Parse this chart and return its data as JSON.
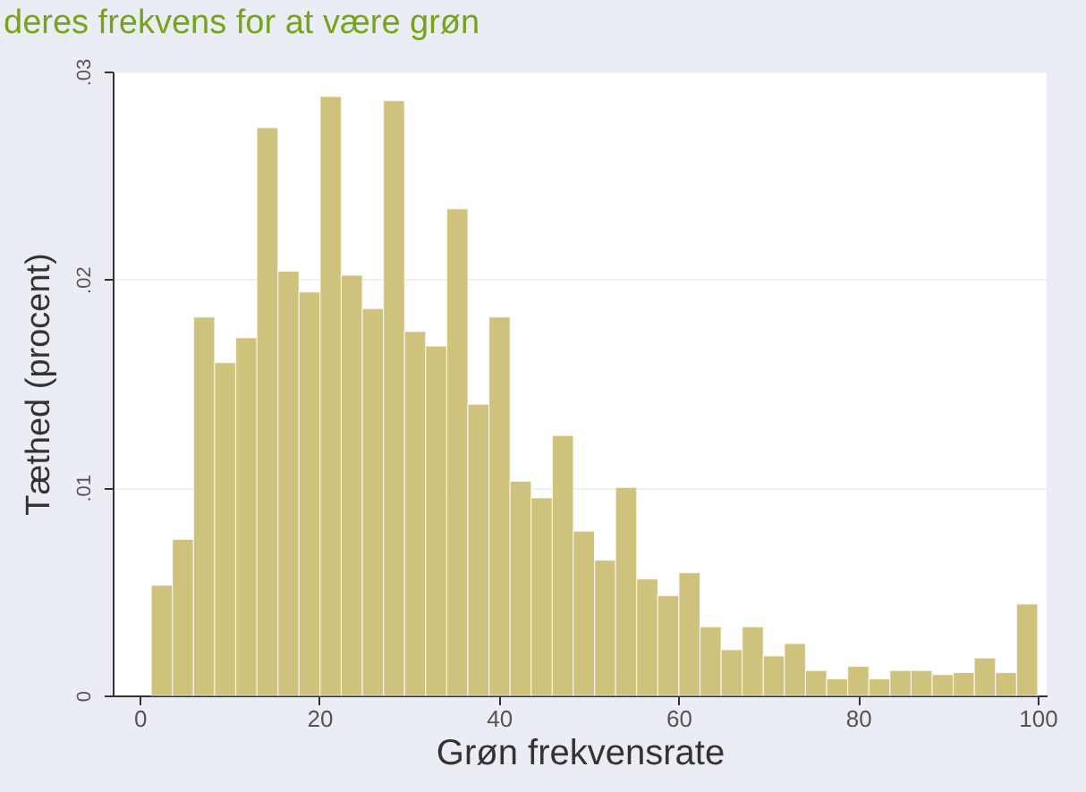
{
  "chart_data": {
    "type": "histogram",
    "title": "deres frekvens for at være grøn",
    "xlabel": "Grøn frekvensrate",
    "ylabel": "Tæthed (procent)",
    "color": "#cfc27c",
    "bins": [
      1.3,
      3.65,
      6.0,
      8.35,
      10.7,
      13.05,
      15.4,
      17.75,
      20.1,
      22.45,
      24.8,
      27.15,
      29.5,
      31.85,
      34.2,
      36.55,
      38.9,
      41.25,
      43.6,
      45.95,
      48.3,
      50.65,
      53.0,
      55.35,
      57.7,
      60.05,
      62.4,
      64.75,
      67.1,
      69.45,
      71.8,
      74.15,
      76.5,
      78.85,
      81.2,
      83.55,
      85.9,
      88.25,
      90.6,
      92.95,
      95.3,
      97.65,
      100.0
    ],
    "values": [
      0.0053,
      0.0075,
      0.0182,
      0.016,
      0.0172,
      0.0273,
      0.0204,
      0.0194,
      0.0288,
      0.0202,
      0.0186,
      0.0286,
      0.0175,
      0.0168,
      0.0234,
      0.014,
      0.0182,
      0.0103,
      0.0095,
      0.0125,
      0.0079,
      0.0065,
      0.01,
      0.0056,
      0.0048,
      0.0059,
      0.0033,
      0.0022,
      0.0033,
      0.0019,
      0.0025,
      0.0012,
      0.0008,
      0.0014,
      0.0008,
      0.0012,
      0.0012,
      0.001,
      0.0011,
      0.0018,
      0.0011,
      0.0044
    ],
    "xlim": [
      -3,
      101
    ],
    "ylim": [
      0,
      0.03
    ],
    "xticks": [
      0,
      20,
      40,
      60,
      80,
      100
    ],
    "yticks": [
      0,
      {
        "value": 0.01,
        "label": ".01"
      },
      {
        "value": 0.02,
        "label": ".02"
      },
      {
        "value": 0.03,
        "label": ".03"
      }
    ],
    "grid": "y"
  }
}
